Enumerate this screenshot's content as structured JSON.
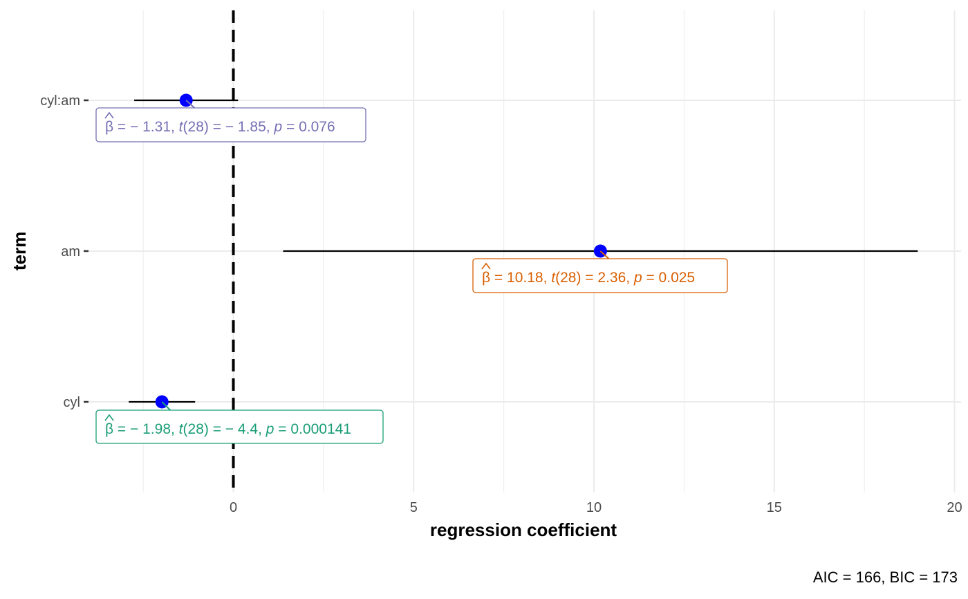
{
  "chart_data": {
    "type": "scatter",
    "subtype": "coefficient-plot",
    "xlabel": "regression coefficient",
    "ylabel": "term",
    "xlim": [
      -4.5,
      20
    ],
    "x_ticks": [
      0,
      5,
      10,
      15,
      20
    ],
    "x_tick_labels": [
      "0",
      "5",
      "10",
      "15",
      "20"
    ],
    "reference_line_x": 0,
    "grid": true,
    "caption": "AIC = 166, BIC = 173",
    "point_color": "#0000ff",
    "terms": [
      {
        "term": "cyl:am",
        "estimate": -1.31,
        "conf_low": -2.75,
        "conf_high": 0.13,
        "color": "#7570b3",
        "label": {
          "beta": "β",
          "estimate": "= − 1.31,",
          "t_sym": "t",
          "t_df": "(28)",
          "t_val": "= − 1.85,",
          "p_sym": "p",
          "p_val": "= 0.076"
        }
      },
      {
        "term": "am",
        "estimate": 10.18,
        "conf_low": 1.38,
        "conf_high": 18.98,
        "color": "#d95f02",
        "label": {
          "beta": "β",
          "estimate": "= 10.18,",
          "t_sym": "t",
          "t_df": "(28)",
          "t_val": "= 2.36,",
          "p_sym": "p",
          "p_val": "= 0.025"
        }
      },
      {
        "term": "cyl",
        "estimate": -1.98,
        "conf_low": -2.9,
        "conf_high": -1.06,
        "color": "#1b9e77",
        "label": {
          "beta": "β",
          "estimate": "= − 1.98,",
          "t_sym": "t",
          "t_df": "(28)",
          "t_val": "= − 4.4,",
          "p_sym": "p",
          "p_val": "= 0.000141"
        }
      }
    ]
  }
}
